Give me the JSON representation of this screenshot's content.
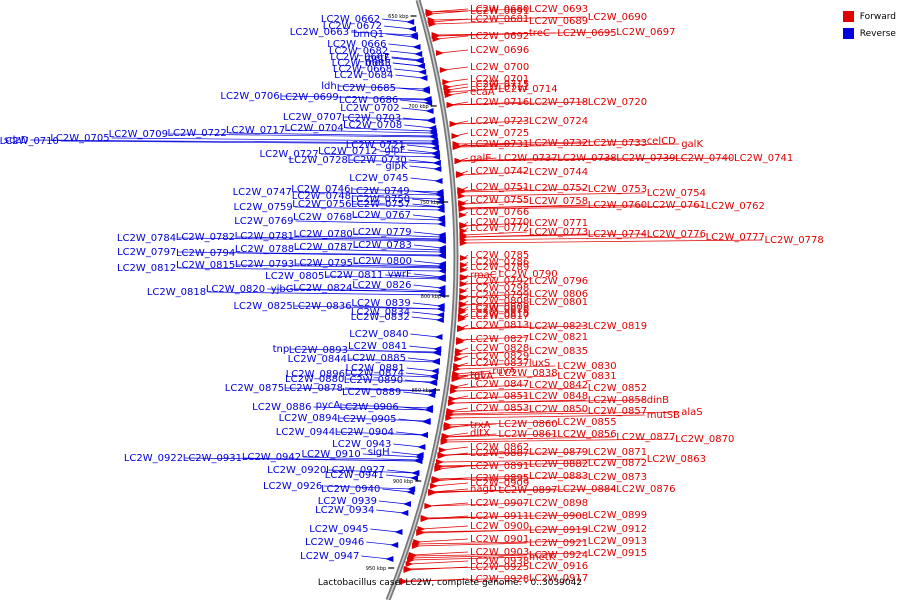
{
  "caption": "Lactobacillus casei LC2W, complete genome. - 0..3039042",
  "legend": [
    {
      "label": "Forward",
      "color": "#e00000"
    },
    {
      "label": "Reverse",
      "color": "#0000dd"
    }
  ],
  "ticks": [
    "650 kbp",
    "700 kbp",
    "750 kbp",
    "800 kbp",
    "850 kbp",
    "900 kbp",
    "950 kbp"
  ],
  "forward_labels": [
    [
      "LC2W_0680",
      12
    ],
    [
      "LC2W_0681",
      22
    ],
    [
      "LC2W_0689",
      24
    ],
    [
      "LC2W_0690",
      20
    ],
    [
      "LC2W_0691",
      14
    ],
    [
      "LC2W_0693",
      12
    ],
    [
      "LC2W_0692",
      39
    ],
    [
      "treC",
      36
    ],
    [
      "LC2W_0695",
      36
    ],
    [
      "LC2W_0697",
      35
    ],
    [
      "LC2W_0696",
      53
    ],
    [
      "LC2W_0700",
      70
    ],
    [
      "LC2W_0701",
      82
    ],
    [
      "LC2W_0711",
      90
    ],
    [
      "ecaA",
      95
    ],
    [
      "LC2W_0714",
      92
    ],
    [
      "LC2W_0715",
      87
    ],
    [
      "LC2W_0716",
      105
    ],
    [
      "LC2W_0718",
      105
    ],
    [
      "LC2W_0720",
      105
    ],
    [
      "LC2W_0723",
      124
    ],
    [
      "LC2W_0724",
      124
    ],
    [
      "LC2W_0725",
      136
    ],
    [
      "LC2W_0731",
      147
    ],
    [
      "LC2W_0732",
      146
    ],
    [
      "LC2W_0733",
      146
    ],
    [
      "celCD",
      144
    ],
    [
      "galK",
      147
    ],
    [
      "galE",
      161
    ],
    [
      "LC2W_0737",
      161
    ],
    [
      "LC2W_0738",
      161
    ],
    [
      "LC2W_0739",
      161
    ],
    [
      "LC2W_0740",
      161
    ],
    [
      "LC2W_0741",
      161
    ],
    [
      "LC2W_0742",
      174
    ],
    [
      "LC2W_0744",
      175
    ],
    [
      "LC2W_0751",
      190
    ],
    [
      "LC2W_0752",
      191
    ],
    [
      "LC2W_0753",
      192
    ],
    [
      "LC2W_0754",
      196
    ],
    [
      "LC2W_0755",
      203
    ],
    [
      "LC2W_0758",
      204
    ],
    [
      "LC2W_0760",
      208
    ],
    [
      "LC2W_0761",
      208
    ],
    [
      "LC2W_0762",
      209
    ],
    [
      "LC2W_0766",
      215
    ],
    [
      "LC2W_0770",
      225
    ],
    [
      "LC2W_0771",
      226
    ],
    [
      "LC2W_0772",
      231
    ],
    [
      "LC2W_0773",
      235
    ],
    [
      "LC2W_0774",
      237
    ],
    [
      "LC2W_0776",
      237
    ],
    [
      "LC2W_0777",
      240
    ],
    [
      "LC2W_0778",
      243
    ],
    [
      "LC2W_0785",
      258
    ],
    [
      "LC2W_0786",
      265
    ],
    [
      "LC2W_0789",
      270
    ],
    [
      "rmaC",
      278
    ],
    [
      "LC2W_0790",
      277
    ],
    [
      "LC2W_0792",
      284
    ],
    [
      "LC2W_0796",
      284
    ],
    [
      "LC2W_0798",
      291
    ],
    [
      "LC2W_0799",
      298
    ],
    [
      "LC2W_0806",
      297
    ],
    [
      "LC2W_0808",
      304
    ],
    [
      "LC2W_0801",
      305
    ],
    [
      "LC2W_0809",
      310
    ],
    [
      "LC2W_0810",
      317
    ],
    [
      "LC2W_0816",
      312
    ],
    [
      "LC2W_0817",
      319
    ],
    [
      "LC2W_0813",
      328
    ],
    [
      "LC2W_0823",
      329
    ],
    [
      "LC2W_0819",
      329
    ],
    [
      "LC2W_0827",
      342
    ],
    [
      "LC2W_0821",
      340
    ],
    [
      "LC2W_0828",
      351
    ],
    [
      "LC2W_0835",
      354
    ],
    [
      "LC2W_0829",
      359
    ],
    [
      "LC2W_0837",
      366
    ],
    [
      "luxS",
      366
    ],
    [
      "LC2W_0830",
      369
    ],
    [
      "tgt",
      378
    ],
    [
      "ruvA",
      374
    ],
    [
      "ruvA",
      379
    ],
    [
      "LC2W_0838",
      376
    ],
    [
      "LC2W_0831",
      379
    ],
    [
      "LC2W_0847",
      387
    ],
    [
      "LC2W_0842",
      388
    ],
    [
      "LC2W_0852",
      391
    ],
    [
      "LC2W_0851",
      399
    ],
    [
      "LC2W_0848",
      399
    ],
    [
      "LC2W_0858",
      403
    ],
    [
      "dinB",
      403
    ],
    [
      "LC2W_0853",
      411
    ],
    [
      "LC2W_0850",
      412
    ],
    [
      "LC2W_0857",
      414
    ],
    [
      "mutSB",
      418
    ],
    [
      "alaS",
      415
    ],
    [
      "trxA",
      428
    ],
    [
      "LC2W_0860",
      427
    ],
    [
      "LC2W_0855",
      425
    ],
    [
      "dltX",
      436
    ],
    [
      "LC2W_0861",
      437
    ],
    [
      "LC2W_0856",
      437
    ],
    [
      "LC2W_0877",
      440
    ],
    [
      "LC2W_0870",
      442
    ],
    [
      "LC2W_0862",
      450
    ],
    [
      "LC2W_0887",
      456
    ],
    [
      "LC2W_0879",
      455
    ],
    [
      "LC2W_0871",
      455
    ],
    [
      "LC2W_0891",
      469
    ],
    [
      "LC2W_0882",
      467
    ],
    [
      "LC2W_0872",
      466
    ],
    [
      "LC2W_0863",
      462
    ],
    [
      "LC2W_0895",
      481
    ],
    [
      "LC2W_0883",
      479
    ],
    [
      "LC2W_0873",
      480
    ],
    [
      "LC2W_0909",
      486
    ],
    [
      "nagD",
      492
    ],
    [
      "LC2W_0897",
      493
    ],
    [
      "LC2W_0884",
      492
    ],
    [
      "LC2W_0876",
      492
    ],
    [
      "LC2W_0907",
      506
    ],
    [
      "LC2W_0898",
      506
    ],
    [
      "LC2W_0911",
      519
    ],
    [
      "LC2W_0908",
      519
    ],
    [
      "LC2W_0899",
      518
    ],
    [
      "LC2W_0900",
      529
    ],
    [
      "LC2W_0919",
      533
    ],
    [
      "LC2W_0912",
      532
    ],
    [
      "LC2W_0901",
      542
    ],
    [
      "LC2W_0921",
      546
    ],
    [
      "LC2W_0913",
      544
    ],
    [
      "LC2W_0903",
      555
    ],
    [
      "LC2W_0924",
      558
    ],
    [
      "LC2W_0915",
      556
    ],
    [
      "LC2W_0938",
      564
    ],
    [
      "metK",
      560
    ],
    [
      "LC2W_0925",
      570
    ],
    [
      "LC2W_0916",
      569
    ],
    [
      "LC2W_0928",
      582
    ],
    [
      "LC2W_0917",
      581
    ]
  ],
  "reverse_labels": [
    [
      "LC2W_0662",
      22
    ],
    [
      "LC2W_0672",
      29
    ],
    [
      "brnQ1",
      37
    ],
    [
      "LC2W_0663",
      35
    ],
    [
      "LC2W_0666",
      47
    ],
    [
      "LC2W_0667",
      60
    ],
    [
      "LC2W_0682",
      54
    ],
    [
      "LC2W_0668",
      72
    ],
    [
      "LC2W_0683",
      66
    ],
    [
      "metF",
      61
    ],
    [
      "metE",
      66
    ],
    [
      "LC2W_0684",
      78
    ],
    [
      "LC2W_0685",
      91
    ],
    [
      "ldh",
      89
    ],
    [
      "LC2W_0686",
      103
    ],
    [
      "LC2W_0699",
      100
    ],
    [
      "LC2W_0706",
      99
    ],
    [
      "LC2W_0702",
      111
    ],
    [
      "LC2W_0703",
      121
    ],
    [
      "LC2W_0707",
      120
    ],
    [
      "LC2W_0708",
      128
    ],
    [
      "LC2W_0704",
      131
    ],
    [
      "LC2W_0717",
      133
    ],
    [
      "LC2W_0722",
      136
    ],
    [
      "LC2W_0709",
      137
    ],
    [
      "LC2W_0705",
      141
    ],
    [
      "LC2W_0710",
      144
    ],
    [
      "sdzD",
      143
    ],
    [
      "LC2W_0721",
      148
    ],
    [
      "glpF",
      153
    ],
    [
      "LC2W_0712",
      154
    ],
    [
      "LC2W_0727",
      157
    ],
    [
      "LC2W_0730",
      163
    ],
    [
      "LC2W_0728",
      163
    ],
    [
      "glpK",
      169
    ],
    [
      "LC2W_0745",
      181
    ],
    [
      "LC2W_0749",
      194
    ],
    [
      "LC2W_0746",
      192
    ],
    [
      "LC2W_0747",
      195
    ],
    [
      "LC2W_0750",
      202
    ],
    [
      "LC2W_0748",
      199
    ],
    [
      "LC2W_0757",
      207
    ],
    [
      "LC2W_0756",
      207
    ],
    [
      "LC2W_0759",
      210
    ],
    [
      "LC2W_0767",
      218
    ],
    [
      "LC2W_0768",
      220
    ],
    [
      "LC2W_0769",
      224
    ],
    [
      "LC2W_0779",
      235
    ],
    [
      "LC2W_0780",
      237
    ],
    [
      "LC2W_0781",
      239
    ],
    [
      "LC2W_0782",
      240
    ],
    [
      "LC2W_0784",
      241
    ],
    [
      "LC2W_0783",
      248
    ],
    [
      "LC2W_0787",
      250
    ],
    [
      "LC2W_0788",
      252
    ],
    [
      "LC2W_0794",
      256
    ],
    [
      "LC2W_0797",
      255
    ],
    [
      "LC2W_0800",
      264
    ],
    [
      "LC2W_0795",
      266
    ],
    [
      "LC2W_0793",
      267
    ],
    [
      "LC2W_0815",
      268
    ],
    [
      "LC2W_0812",
      271
    ],
    [
      "vwrF",
      277
    ],
    [
      "LC2W_0811",
      278
    ],
    [
      "LC2W_0805",
      279
    ],
    [
      "LC2W_0826",
      288
    ],
    [
      "LC2W_0824",
      291
    ],
    [
      "yjbG",
      292
    ],
    [
      "LC2W_0820",
      292
    ],
    [
      "LC2W_0818",
      295
    ],
    [
      "LC2W_0839",
      306
    ],
    [
      "LC2W_0836",
      309
    ],
    [
      "LC2W_0825",
      309
    ],
    [
      "LC2W_0834",
      315
    ],
    [
      "LC2W_0832",
      320
    ],
    [
      "LC2W_0840",
      337
    ],
    [
      "LC2W_0841",
      349
    ],
    [
      "LC2W_0893",
      353
    ],
    [
      "tnp",
      352
    ],
    [
      "LC2W_0885",
      361
    ],
    [
      "LC2W_0844",
      362
    ],
    [
      "LC2W_0881",
      371
    ],
    [
      "LC2W_0874",
      376
    ],
    [
      "LC2W_0896",
      377
    ],
    [
      "LC2W_0890",
      383
    ],
    [
      "LC2W_0880",
      382
    ],
    [
      "LC2W_0889",
      395
    ],
    [
      "LC2W_0878",
      391
    ],
    [
      "LC2W_0875",
      391
    ],
    [
      "LC2W_0906",
      410
    ],
    [
      "pycA",
      408
    ],
    [
      "LC2W_0886",
      410
    ],
    [
      "LC2W_0905",
      422
    ],
    [
      "LC2W_0894",
      421
    ],
    [
      "LC2W_0904",
      435
    ],
    [
      "LC2W_0944",
      435
    ],
    [
      "LC2W_0943",
      447
    ],
    [
      "sigH",
      455
    ],
    [
      "LC2W_0910",
      457
    ],
    [
      "LC2W_0942",
      460
    ],
    [
      "LC2W_0931",
      461
    ],
    [
      "LC2W_0922",
      461
    ],
    [
      "LC2W_0927",
      473
    ],
    [
      "LC2W_0920",
      473
    ],
    [
      "LC2W_0941",
      478
    ],
    [
      "LC2W_0940",
      492
    ],
    [
      "LC2W_0926",
      489
    ],
    [
      "LC2W_0939",
      504
    ],
    [
      "LC2W_0934",
      513
    ],
    [
      "LC2W_0945",
      532
    ],
    [
      "LC2W_0946",
      545
    ],
    [
      "LC2W_0947",
      559
    ]
  ]
}
